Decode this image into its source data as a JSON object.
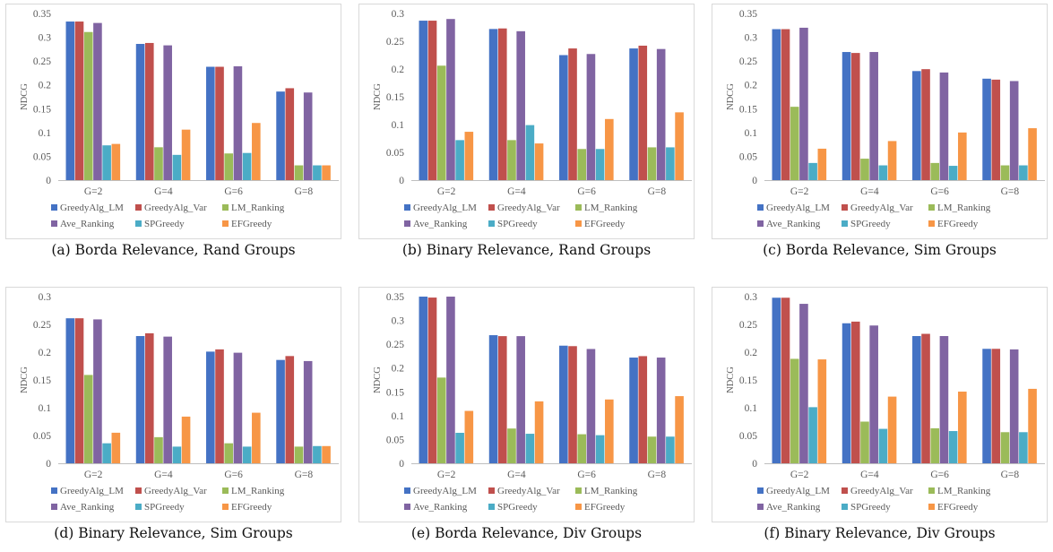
{
  "legend_labels": [
    "GreedyAlg_LM",
    "GreedyAlg_Var",
    "LM_Ranking",
    "Ave_Ranking",
    "SPGreedy",
    "EFGreedy"
  ],
  "chart_data": [
    {
      "type": "bar",
      "caption": "(a) Borda Relevance, Rand Groups",
      "ylabel": "NDCG",
      "ylim": [
        0,
        0.35
      ],
      "yticks": [
        "0",
        "0.05",
        "0.1",
        "0.15",
        "0.2",
        "0.25",
        "0.3",
        "0.35"
      ],
      "categories": [
        "G=2",
        "G=4",
        "G=6",
        "G=8"
      ],
      "legend_placement": "bottom",
      "series": [
        {
          "name": "GreedyAlg_LM",
          "color": "#4472c4",
          "values": [
            0.333,
            0.286,
            0.238,
            0.186
          ]
        },
        {
          "name": "GreedyAlg_Var",
          "color": "#c0504d",
          "values": [
            0.333,
            0.288,
            0.238,
            0.193
          ]
        },
        {
          "name": "LM_Ranking",
          "color": "#9bbb59",
          "values": [
            0.311,
            0.069,
            0.056,
            0.031
          ]
        },
        {
          "name": "Ave_Ranking",
          "color": "#8064a2",
          "values": [
            0.33,
            0.283,
            0.239,
            0.184
          ]
        },
        {
          "name": "SPGreedy",
          "color": "#4bacc6",
          "values": [
            0.073,
            0.053,
            0.057,
            0.031
          ]
        },
        {
          "name": "EFGreedy",
          "color": "#f79646",
          "values": [
            0.076,
            0.106,
            0.12,
            0.031
          ]
        }
      ]
    },
    {
      "type": "bar",
      "caption": "(b) Binary Relevance, Rand Groups",
      "ylabel": "NDCG",
      "ylim": [
        0,
        0.3
      ],
      "yticks": [
        "0",
        "0.05",
        "0.1",
        "0.15",
        "0.2",
        "0.25",
        "0.3"
      ],
      "categories": [
        "G=2",
        "G=4",
        "G=6",
        "G=8"
      ],
      "legend_placement": "bottom",
      "series": [
        {
          "name": "GreedyAlg_LM",
          "color": "#4472c4",
          "values": [
            0.287,
            0.272,
            0.225,
            0.237
          ]
        },
        {
          "name": "GreedyAlg_Var",
          "color": "#c0504d",
          "values": [
            0.287,
            0.273,
            0.237,
            0.242
          ]
        },
        {
          "name": "LM_Ranking",
          "color": "#9bbb59",
          "values": [
            0.206,
            0.072,
            0.056,
            0.059
          ]
        },
        {
          "name": "Ave_Ranking",
          "color": "#8064a2",
          "values": [
            0.29,
            0.268,
            0.227,
            0.236
          ]
        },
        {
          "name": "SPGreedy",
          "color": "#4bacc6",
          "values": [
            0.072,
            0.099,
            0.056,
            0.059
          ]
        },
        {
          "name": "EFGreedy",
          "color": "#f79646",
          "values": [
            0.087,
            0.066,
            0.11,
            0.122
          ]
        }
      ]
    },
    {
      "type": "bar",
      "caption": "(c) Borda Relevance, Sim Groups",
      "ylabel": "NDCG",
      "ylim": [
        0,
        0.35
      ],
      "yticks": [
        "0",
        "0.05",
        "0.1",
        "0.15",
        "0.2",
        "0.25",
        "0.3",
        "0.35"
      ],
      "categories": [
        "G=2",
        "G=4",
        "G=6",
        "G=8"
      ],
      "legend_placement": "bottom",
      "series": [
        {
          "name": "GreedyAlg_LM",
          "color": "#4472c4",
          "values": [
            0.317,
            0.269,
            0.229,
            0.213
          ]
        },
        {
          "name": "GreedyAlg_Var",
          "color": "#c0504d",
          "values": [
            0.317,
            0.267,
            0.233,
            0.211
          ]
        },
        {
          "name": "LM_Ranking",
          "color": "#9bbb59",
          "values": [
            0.154,
            0.045,
            0.036,
            0.031
          ]
        },
        {
          "name": "Ave_Ranking",
          "color": "#8064a2",
          "values": [
            0.32,
            0.269,
            0.226,
            0.208
          ]
        },
        {
          "name": "SPGreedy",
          "color": "#4bacc6",
          "values": [
            0.036,
            0.031,
            0.03,
            0.031
          ]
        },
        {
          "name": "EFGreedy",
          "color": "#f79646",
          "values": [
            0.066,
            0.082,
            0.1,
            0.109
          ]
        }
      ]
    },
    {
      "type": "bar",
      "caption": "(d) Binary Relevance, Sim Groups",
      "ylabel": "NDCG",
      "ylim": [
        0,
        0.3
      ],
      "yticks": [
        "0",
        "0.05",
        "0.1",
        "0.15",
        "0.2",
        "0.25",
        "0.3"
      ],
      "categories": [
        "G=2",
        "G=4",
        "G=6",
        "G=8"
      ],
      "legend_placement": "bottom",
      "series": [
        {
          "name": "GreedyAlg_LM",
          "color": "#4472c4",
          "values": [
            0.261,
            0.229,
            0.201,
            0.186
          ]
        },
        {
          "name": "GreedyAlg_Var",
          "color": "#c0504d",
          "values": [
            0.261,
            0.234,
            0.205,
            0.193
          ]
        },
        {
          "name": "LM_Ranking",
          "color": "#9bbb59",
          "values": [
            0.159,
            0.047,
            0.036,
            0.03
          ]
        },
        {
          "name": "Ave_Ranking",
          "color": "#8064a2",
          "values": [
            0.259,
            0.228,
            0.199,
            0.184
          ]
        },
        {
          "name": "SPGreedy",
          "color": "#4bacc6",
          "values": [
            0.036,
            0.03,
            0.03,
            0.031
          ]
        },
        {
          "name": "EFGreedy",
          "color": "#f79646",
          "values": [
            0.055,
            0.084,
            0.091,
            0.031
          ]
        }
      ]
    },
    {
      "type": "bar",
      "caption": "(e) Borda Relevance, Div Groups",
      "ylabel": "NDCG",
      "ylim": [
        0,
        0.35
      ],
      "yticks": [
        "0",
        "0.05",
        "0.1",
        "0.15",
        "0.2",
        "0.25",
        "0.3",
        "0.35"
      ],
      "categories": [
        "G=2",
        "G=4",
        "G=6",
        "G=8"
      ],
      "legend_placement": "bottom",
      "series": [
        {
          "name": "GreedyAlg_LM",
          "color": "#4472c4",
          "values": [
            0.35,
            0.269,
            0.247,
            0.222
          ]
        },
        {
          "name": "GreedyAlg_Var",
          "color": "#c0504d",
          "values": [
            0.348,
            0.267,
            0.246,
            0.225
          ]
        },
        {
          "name": "LM_Ranking",
          "color": "#9bbb59",
          "values": [
            0.18,
            0.073,
            0.061,
            0.056
          ]
        },
        {
          "name": "Ave_Ranking",
          "color": "#8064a2",
          "values": [
            0.35,
            0.267,
            0.24,
            0.222
          ]
        },
        {
          "name": "SPGreedy",
          "color": "#4bacc6",
          "values": [
            0.064,
            0.062,
            0.059,
            0.056
          ]
        },
        {
          "name": "EFGreedy",
          "color": "#f79646",
          "values": [
            0.11,
            0.13,
            0.134,
            0.141
          ]
        }
      ]
    },
    {
      "type": "bar",
      "caption": "(f) Binary Relevance, Div Groups",
      "ylabel": "NDCG",
      "ylim": [
        0,
        0.3
      ],
      "yticks": [
        "0",
        "0.05",
        "0.1",
        "0.15",
        "0.2",
        "0.25",
        "0.3"
      ],
      "categories": [
        "G=2",
        "G=4",
        "G=6",
        "G=8"
      ],
      "legend_placement": "bottom",
      "series": [
        {
          "name": "GreedyAlg_LM",
          "color": "#4472c4",
          "values": [
            0.298,
            0.252,
            0.229,
            0.206
          ]
        },
        {
          "name": "GreedyAlg_Var",
          "color": "#c0504d",
          "values": [
            0.298,
            0.255,
            0.233,
            0.206
          ]
        },
        {
          "name": "LM_Ranking",
          "color": "#9bbb59",
          "values": [
            0.188,
            0.075,
            0.063,
            0.056
          ]
        },
        {
          "name": "Ave_Ranking",
          "color": "#8064a2",
          "values": [
            0.287,
            0.248,
            0.229,
            0.205
          ]
        },
        {
          "name": "SPGreedy",
          "color": "#4bacc6",
          "values": [
            0.101,
            0.062,
            0.058,
            0.056
          ]
        },
        {
          "name": "EFGreedy",
          "color": "#f79646",
          "values": [
            0.187,
            0.12,
            0.129,
            0.134
          ]
        }
      ]
    }
  ]
}
